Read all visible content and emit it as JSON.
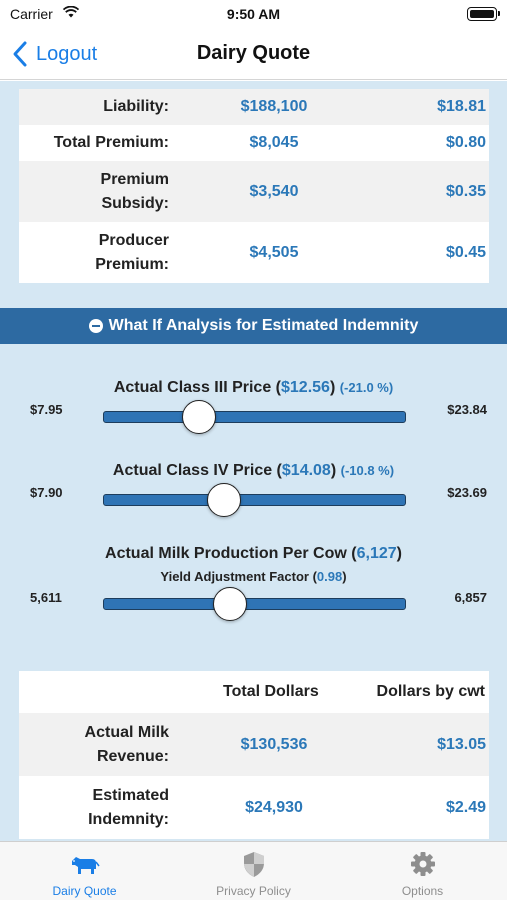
{
  "status_bar": {
    "carrier": "Carrier",
    "time": "9:50 AM"
  },
  "nav": {
    "back_label": "Logout",
    "title": "Dairy Quote"
  },
  "premium_table": {
    "rows": [
      {
        "label": "Liability:",
        "total": "$188,100",
        "cwt": "$18.81"
      },
      {
        "label": "Total Premium:",
        "total": "$8,045",
        "cwt": "$0.80"
      },
      {
        "label_line1": "Premium",
        "label_line2": "Subsidy:",
        "total": "$3,540",
        "cwt": "$0.35"
      },
      {
        "label_line1": "Producer",
        "label_line2": "Premium:",
        "total": "$4,505",
        "cwt": "$0.45"
      }
    ]
  },
  "what_if": {
    "title": "What If Analysis for Estimated Indemnity",
    "sliders": [
      {
        "label": "Actual Class III Price",
        "value": "$12.56",
        "pct": "(-21.0 %)",
        "min": "$7.95",
        "max": "$23.84",
        "fraction": 0.315
      },
      {
        "label": "Actual Class IV Price",
        "value": "$14.08",
        "pct": "(-10.8 %)",
        "min": "$7.90",
        "max": "$23.69",
        "fraction": 0.4
      },
      {
        "label": "Actual Milk Production Per Cow",
        "value": "6,127",
        "sub_label": "Yield Adjustment Factor",
        "sub_value": "0.98",
        "min": "5,611",
        "max": "6,857",
        "fraction": 0.42
      }
    ]
  },
  "results_table": {
    "headers": {
      "total": "Total Dollars",
      "cwt": "Dollars by cwt"
    },
    "rows": [
      {
        "label_line1": "Actual Milk",
        "label_line2": "Revenue:",
        "total": "$130,536",
        "cwt": "$13.05"
      },
      {
        "label_line1": "Estimated",
        "label_line2": "Indemnity:",
        "total": "$24,930",
        "cwt": "$2.49"
      }
    ]
  },
  "tabs": [
    {
      "label": "Dairy Quote",
      "icon": "cow-icon",
      "active": true
    },
    {
      "label": "Privacy Policy",
      "icon": "shield-icon",
      "active": false
    },
    {
      "label": "Options",
      "icon": "gear-icon",
      "active": false
    }
  ],
  "colors": {
    "accent": "#1a7ee6",
    "value_blue": "#2b78b8",
    "section_bar": "#2d6aa2",
    "background": "#d5e7f3"
  }
}
